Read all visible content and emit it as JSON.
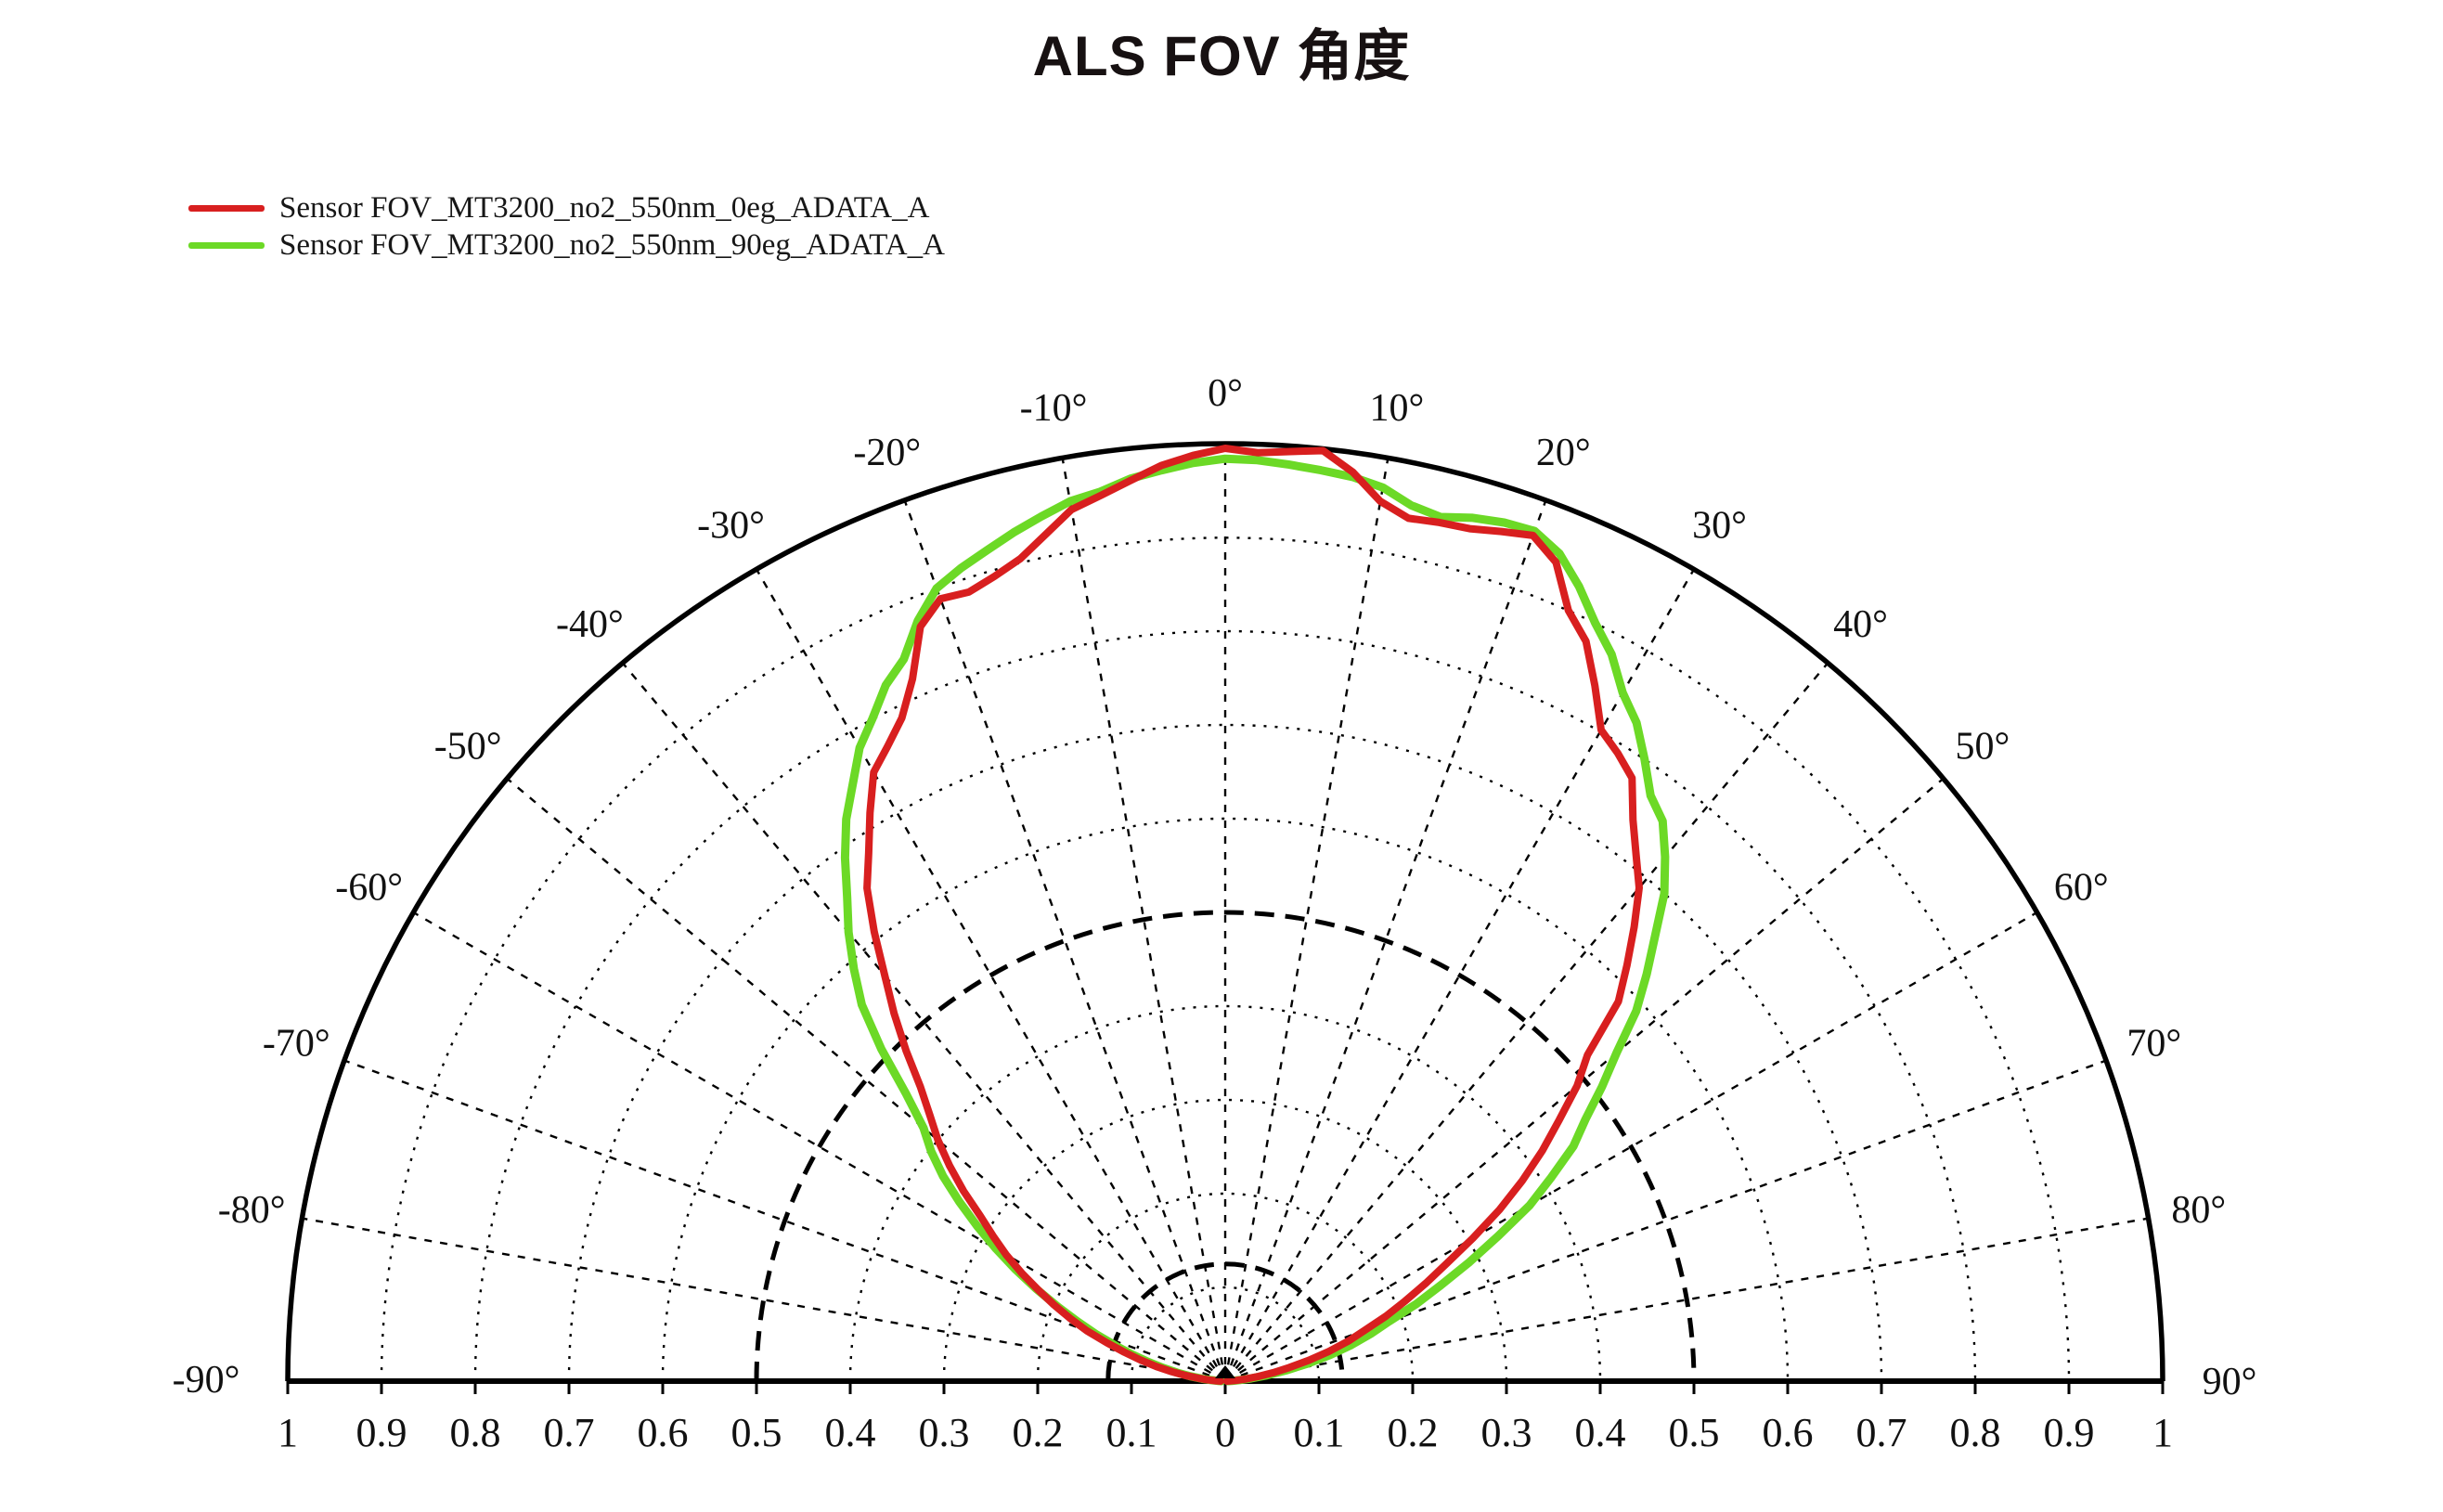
{
  "title": "ALS FOV 角度",
  "colors": {
    "background": "#ffffff",
    "grid": "#000000",
    "title_text": "#171112",
    "red_series": "#d81f1f",
    "green_series": "#6cd926"
  },
  "chart_data": {
    "type": "line",
    "coordinate": "polar-half",
    "title": "ALS FOV 角度",
    "angle_range_deg": [
      -90,
      90
    ],
    "radial_range": [
      0,
      1
    ],
    "legend_position": "top-left",
    "grid": {
      "circle_step": 0.1,
      "bold_dashed_circles": [
        0.125,
        0.5
      ],
      "radial_line_step_deg": 10,
      "minor_style": "dotted",
      "grid_on": true
    },
    "angle_ticks": [
      {
        "deg": -90,
        "label": "-90°"
      },
      {
        "deg": -80,
        "label": "-80°"
      },
      {
        "deg": -70,
        "label": "-70°"
      },
      {
        "deg": -60,
        "label": "-60°"
      },
      {
        "deg": -50,
        "label": "-50°"
      },
      {
        "deg": -40,
        "label": "-40°"
      },
      {
        "deg": -30,
        "label": "-30°"
      },
      {
        "deg": -20,
        "label": "-20°"
      },
      {
        "deg": -10,
        "label": "-10°"
      },
      {
        "deg": 0,
        "label": "0°"
      },
      {
        "deg": 10,
        "label": "10°"
      },
      {
        "deg": 20,
        "label": "20°"
      },
      {
        "deg": 30,
        "label": "30°"
      },
      {
        "deg": 40,
        "label": "40°"
      },
      {
        "deg": 50,
        "label": "50°"
      },
      {
        "deg": 60,
        "label": "60°"
      },
      {
        "deg": 70,
        "label": "70°"
      },
      {
        "deg": 80,
        "label": "80°"
      },
      {
        "deg": 90,
        "label": "90°"
      }
    ],
    "radius_ticks": [
      {
        "v": -1.0,
        "label": "1"
      },
      {
        "v": -0.9,
        "label": "0.9"
      },
      {
        "v": -0.8,
        "label": "0.8"
      },
      {
        "v": -0.7,
        "label": "0.7"
      },
      {
        "v": -0.6,
        "label": "0.6"
      },
      {
        "v": -0.5,
        "label": "0.5"
      },
      {
        "v": -0.4,
        "label": "0.4"
      },
      {
        "v": -0.3,
        "label": "0.3"
      },
      {
        "v": -0.2,
        "label": "0.2"
      },
      {
        "v": -0.1,
        "label": "0.1"
      },
      {
        "v": 0.0,
        "label": "0"
      },
      {
        "v": 0.1,
        "label": "0.1"
      },
      {
        "v": 0.2,
        "label": "0.2"
      },
      {
        "v": 0.3,
        "label": "0.3"
      },
      {
        "v": 0.4,
        "label": "0.4"
      },
      {
        "v": 0.5,
        "label": "0.5"
      },
      {
        "v": 0.6,
        "label": "0.6"
      },
      {
        "v": 0.7,
        "label": "0.7"
      },
      {
        "v": 0.8,
        "label": "0.8"
      },
      {
        "v": 0.9,
        "label": "0.9"
      },
      {
        "v": 1.0,
        "label": "1"
      }
    ],
    "series": [
      {
        "name": "Sensor FOV_MT3200_no2_550nm_0eg_ADATA_A",
        "color": "#d81f1f",
        "stroke_width": 8,
        "points": [
          [
            -90,
            0.005
          ],
          [
            -88,
            0.01
          ],
          [
            -86,
            0.018
          ],
          [
            -84,
            0.028
          ],
          [
            -82,
            0.042
          ],
          [
            -80,
            0.058
          ],
          [
            -78,
            0.075
          ],
          [
            -76,
            0.093
          ],
          [
            -74,
            0.112
          ],
          [
            -72,
            0.133
          ],
          [
            -70,
            0.157
          ],
          [
            -68,
            0.178
          ],
          [
            -66,
            0.2
          ],
          [
            -64,
            0.222
          ],
          [
            -62,
            0.246
          ],
          [
            -60,
            0.27
          ],
          [
            -58,
            0.292
          ],
          [
            -56,
            0.315
          ],
          [
            -54,
            0.345
          ],
          [
            -52,
            0.373
          ],
          [
            -50,
            0.4
          ],
          [
            -48,
            0.424
          ],
          [
            -46,
            0.452
          ],
          [
            -44,
            0.49
          ],
          [
            -42,
            0.528
          ],
          [
            -40,
            0.565
          ],
          [
            -38,
            0.608
          ],
          [
            -36,
            0.65
          ],
          [
            -34,
            0.68
          ],
          [
            -32,
            0.715
          ],
          [
            -30,
            0.75
          ],
          [
            -28,
            0.767
          ],
          [
            -26,
            0.787
          ],
          [
            -24,
            0.82
          ],
          [
            -22,
            0.868
          ],
          [
            -20,
            0.888
          ],
          [
            -18,
            0.885
          ],
          [
            -16,
            0.893
          ],
          [
            -14,
            0.904
          ],
          [
            -12,
            0.923
          ],
          [
            -10,
            0.944
          ],
          [
            -8,
            0.954
          ],
          [
            -6,
            0.966
          ],
          [
            -4,
            0.979
          ],
          [
            -2,
            0.988
          ],
          [
            0,
            0.995
          ],
          [
            2,
            0.991
          ],
          [
            4,
            0.994
          ],
          [
            6,
            0.998
          ],
          [
            8,
            0.979
          ],
          [
            10,
            0.953
          ],
          [
            12,
            0.941
          ],
          [
            14,
            0.944
          ],
          [
            16,
            0.946
          ],
          [
            18,
            0.953
          ],
          [
            20,
            0.96
          ],
          [
            22,
            0.942
          ],
          [
            24,
            0.9
          ],
          [
            26,
            0.878
          ],
          [
            28,
            0.84
          ],
          [
            30,
            0.802
          ],
          [
            32,
            0.79
          ],
          [
            34,
            0.776
          ],
          [
            36,
            0.74
          ],
          [
            38,
            0.712
          ],
          [
            40,
            0.687
          ],
          [
            42,
            0.652
          ],
          [
            44,
            0.617
          ],
          [
            46,
            0.583
          ],
          [
            48,
            0.52
          ],
          [
            50,
            0.49
          ],
          [
            52,
            0.452
          ],
          [
            54,
            0.418
          ],
          [
            56,
            0.382
          ],
          [
            58,
            0.345
          ],
          [
            60,
            0.305
          ],
          [
            62,
            0.268
          ],
          [
            64,
            0.238
          ],
          [
            66,
            0.21
          ],
          [
            68,
            0.185
          ],
          [
            70,
            0.158
          ],
          [
            72,
            0.138
          ],
          [
            74,
            0.115
          ],
          [
            76,
            0.092
          ],
          [
            78,
            0.07
          ],
          [
            80,
            0.052
          ],
          [
            82,
            0.036
          ],
          [
            84,
            0.022
          ],
          [
            86,
            0.012
          ],
          [
            88,
            0.005
          ],
          [
            90,
            0.002
          ]
        ]
      },
      {
        "name": "Sensor FOV_MT3200_no2_550nm_90eg_ADATA_A",
        "color": "#6cd926",
        "stroke_width": 9,
        "points": [
          [
            -90,
            0.004
          ],
          [
            -88,
            0.008
          ],
          [
            -86,
            0.015
          ],
          [
            -84,
            0.025
          ],
          [
            -82,
            0.038
          ],
          [
            -80,
            0.052
          ],
          [
            -78,
            0.068
          ],
          [
            -76,
            0.085
          ],
          [
            -74,
            0.104
          ],
          [
            -72,
            0.124
          ],
          [
            -70,
            0.147
          ],
          [
            -68,
            0.17
          ],
          [
            -66,
            0.196
          ],
          [
            -64,
            0.224
          ],
          [
            -62,
            0.253
          ],
          [
            -60,
            0.282
          ],
          [
            -58,
            0.312
          ],
          [
            -56,
            0.342
          ],
          [
            -54,
            0.372
          ],
          [
            -52,
            0.398
          ],
          [
            -50,
            0.42
          ],
          [
            -48,
            0.458
          ],
          [
            -46,
            0.51
          ],
          [
            -44,
            0.558
          ],
          [
            -42,
            0.592
          ],
          [
            -40,
            0.625
          ],
          [
            -38,
            0.655
          ],
          [
            -36,
            0.69
          ],
          [
            -34,
            0.723
          ],
          [
            -32,
            0.75
          ],
          [
            -30,
            0.78
          ],
          [
            -28,
            0.801
          ],
          [
            -26,
            0.826
          ],
          [
            -24,
            0.843
          ],
          [
            -22,
            0.875
          ],
          [
            -20,
            0.9
          ],
          [
            -18,
            0.912
          ],
          [
            -16,
            0.922
          ],
          [
            -14,
            0.933
          ],
          [
            -12,
            0.943
          ],
          [
            -10,
            0.953
          ],
          [
            -8,
            0.958
          ],
          [
            -6,
            0.968
          ],
          [
            -4,
            0.974
          ],
          [
            -2,
            0.98
          ],
          [
            0,
            0.984
          ],
          [
            2,
            0.983
          ],
          [
            4,
            0.98
          ],
          [
            6,
            0.977
          ],
          [
            8,
            0.974
          ],
          [
            10,
            0.968
          ],
          [
            12,
            0.955
          ],
          [
            14,
            0.95
          ],
          [
            16,
            0.958
          ],
          [
            18,
            0.963
          ],
          [
            20,
            0.965
          ],
          [
            22,
            0.952
          ],
          [
            24,
            0.928
          ],
          [
            26,
            0.9
          ],
          [
            28,
            0.878
          ],
          [
            30,
            0.848
          ],
          [
            32,
            0.828
          ],
          [
            34,
            0.8
          ],
          [
            36,
            0.772
          ],
          [
            38,
            0.758
          ],
          [
            40,
            0.73
          ],
          [
            42,
            0.7
          ],
          [
            44,
            0.66
          ],
          [
            46,
            0.625
          ],
          [
            48,
            0.59
          ],
          [
            50,
            0.545
          ],
          [
            52,
            0.51
          ],
          [
            54,
            0.475
          ],
          [
            56,
            0.448
          ],
          [
            58,
            0.41
          ],
          [
            60,
            0.375
          ],
          [
            62,
            0.33
          ],
          [
            64,
            0.29
          ],
          [
            66,
            0.252
          ],
          [
            68,
            0.22
          ],
          [
            70,
            0.186
          ],
          [
            72,
            0.163
          ],
          [
            74,
            0.14
          ],
          [
            76,
            0.115
          ],
          [
            78,
            0.09
          ],
          [
            80,
            0.066
          ],
          [
            82,
            0.045
          ],
          [
            84,
            0.028
          ],
          [
            86,
            0.015
          ],
          [
            88,
            0.007
          ],
          [
            90,
            0.003
          ]
        ]
      }
    ]
  }
}
